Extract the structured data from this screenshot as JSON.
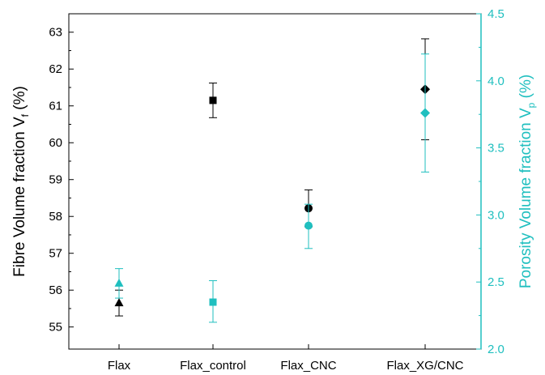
{
  "chart_data": {
    "type": "scatter",
    "categories": [
      "Flax",
      "Flax_control",
      "Flax_CNC",
      "Flax_XG/CNC"
    ],
    "y_left": {
      "label_main": "Fibre Volume fraction V",
      "label_sub": "f",
      "label_unit": " (%)",
      "ylim": [
        54.4,
        63.5
      ],
      "ticks": [
        55,
        56,
        57,
        58,
        59,
        60,
        61,
        62,
        63
      ]
    },
    "y_right": {
      "label_main": "Porosity Volume fraction V",
      "label_sub": "p",
      "label_unit": " (%)",
      "ylim": [
        2.0,
        4.5
      ],
      "ticks": [
        "2.0",
        "2.5",
        "3.0",
        "3.5",
        "4.0",
        "4.5"
      ]
    },
    "series": [
      {
        "axis": "left",
        "color": "#000000",
        "markers": [
          "triangle",
          "square",
          "circle",
          "diamond"
        ],
        "values": [
          55.65,
          61.15,
          58.22,
          61.45
        ],
        "err_low": [
          55.3,
          60.68,
          57.72,
          60.08
        ],
        "err_high": [
          56.0,
          61.62,
          58.72,
          62.82
        ]
      },
      {
        "axis": "right",
        "color": "#1fbfbf",
        "markers": [
          "triangle",
          "square",
          "circle",
          "diamond"
        ],
        "values": [
          2.49,
          2.35,
          2.92,
          3.76
        ],
        "err_low": [
          2.38,
          2.2,
          2.75,
          3.32
        ],
        "err_high": [
          2.6,
          2.51,
          3.08,
          4.2
        ]
      }
    ],
    "grid": false
  }
}
